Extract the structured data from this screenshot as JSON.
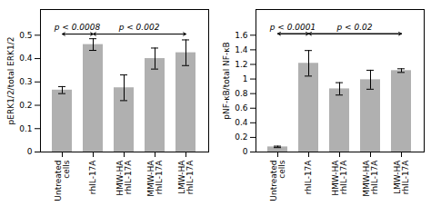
{
  "chart_data": [
    {
      "type": "bar",
      "categories": [
        "Untreated\ncells",
        "rhIL-17A",
        "HMW-HA\nrhIL-17A",
        "MMW-HA\nrhIL-17A",
        "LMW-HA\nrhIL-17A"
      ],
      "values": [
        0.265,
        0.46,
        0.275,
        0.4,
        0.425
      ],
      "errors": [
        0.015,
        0.025,
        0.055,
        0.045,
        0.055
      ],
      "color": "#b0b0b0",
      "ylabel": "pERK1/2/total ERK1/2",
      "ylim": [
        0,
        0.61
      ],
      "yticks": [
        0,
        0.1,
        0.2,
        0.3,
        0.4,
        0.5
      ],
      "grid": false,
      "annotations": [
        {
          "text": "p < 0.0008",
          "from": "Untreated\ncells",
          "to": "rhIL-17A",
          "y": 0.505
        },
        {
          "text": "p < 0.002",
          "from": "rhIL-17A",
          "to": "LMW-HA\nrhIL-17A",
          "y": 0.505
        }
      ]
    },
    {
      "type": "bar",
      "categories": [
        "Untreated\ncells",
        "rhIL-17A",
        "HMW-HA\nrhIL-17A",
        "MMW-HA\nrhIL-17A",
        "LMW-HA\nrhIL-17A"
      ],
      "values": [
        0.07,
        1.215,
        0.865,
        0.99,
        1.115
      ],
      "errors": [
        0.01,
        0.175,
        0.085,
        0.13,
        0.025
      ],
      "color": "#b0b0b0",
      "ylabel": "pNF-κB/total NF-κB",
      "ylim": [
        0,
        1.952
      ],
      "yticks": [
        0,
        0.2,
        0.4,
        0.6,
        0.8,
        1,
        1.2,
        1.4,
        1.6
      ],
      "grid": false,
      "annotations": [
        {
          "text": "p < 0.0001",
          "from": "Untreated\ncells",
          "to": "rhIL-17A",
          "y": 1.62
        },
        {
          "text": "p < 0.02",
          "from": "rhIL-17A",
          "to": "LMW-HA\nrhIL-17A",
          "y": 1.62
        }
      ]
    }
  ]
}
